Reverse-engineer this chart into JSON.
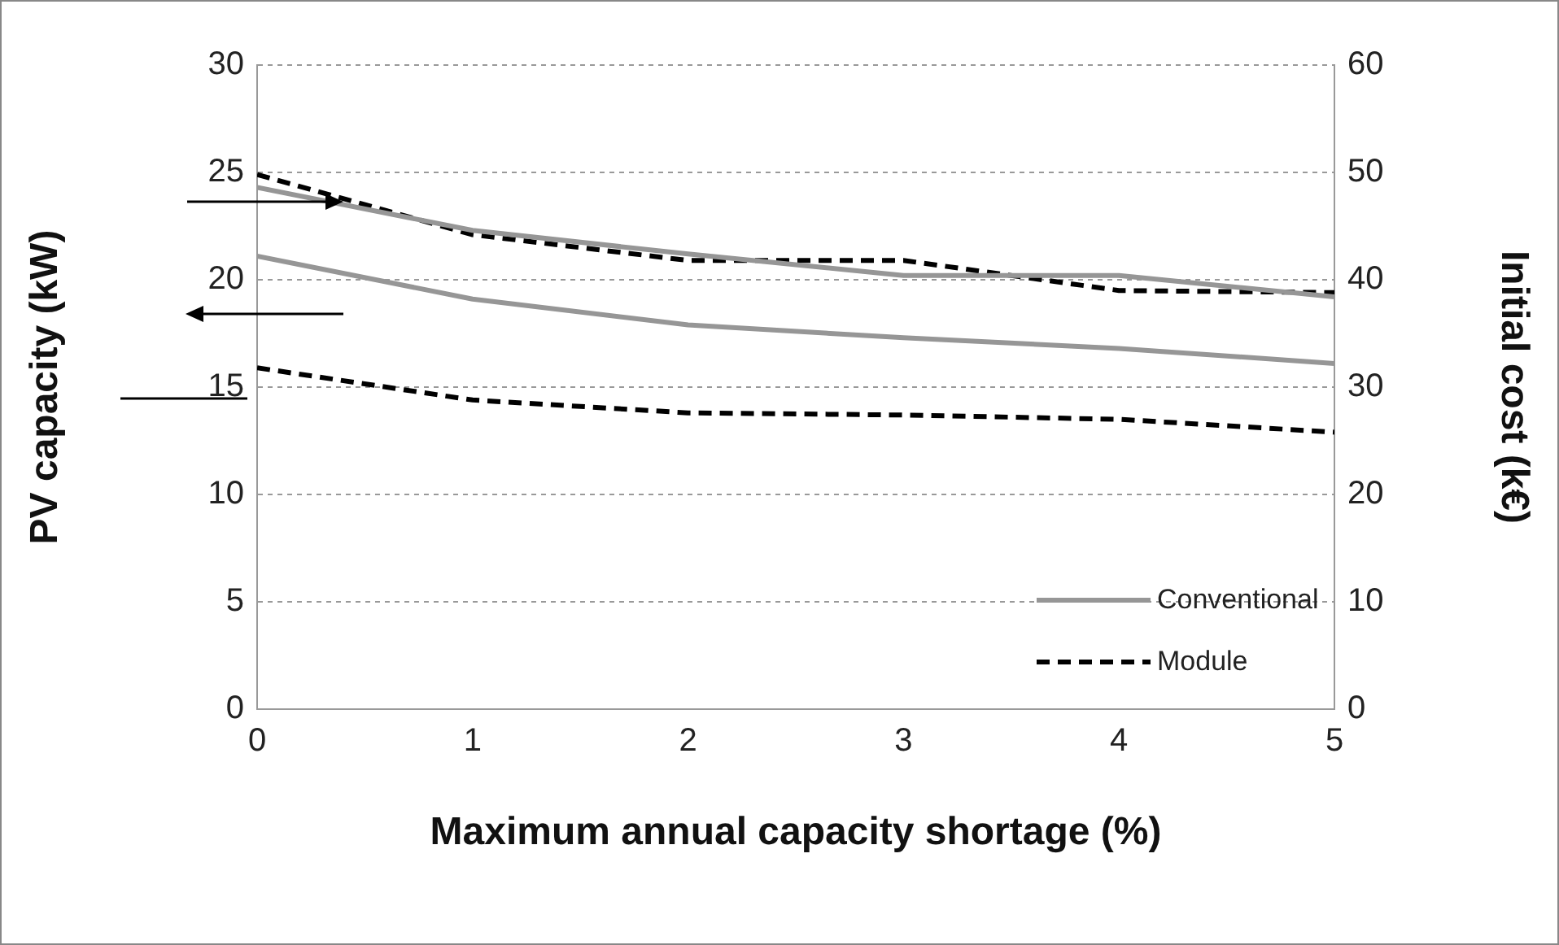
{
  "chart_data": {
    "type": "line",
    "xlabel": "Maximum annual capacity shortage (%)",
    "ylabel": "PV capacity (kW)",
    "y2label": "Initial cost (k€)",
    "x": [
      0,
      1,
      2,
      3,
      4,
      5
    ],
    "series": [
      {
        "name": "Conventional",
        "color": "#969696",
        "line_style": "solid",
        "axis": "y2",
        "values": [
          48.6,
          44.6,
          42.4,
          40.4,
          40.4,
          38.4
        ]
      },
      {
        "name": "Module",
        "color": "#000000",
        "line_style": "dashed",
        "axis": "y2",
        "values": [
          49.8,
          44.2,
          41.8,
          41.8,
          39,
          38.8
        ]
      },
      {
        "color": "#969696",
        "line_style": "solid",
        "values": [
          21.1,
          19.1,
          17.9,
          17.3,
          16.8,
          16.1
        ]
      },
      {
        "color": "#000000",
        "line_style": "dashed",
        "values": [
          15.9,
          14.4,
          13.8,
          13.7,
          13.5,
          12.9
        ]
      }
    ],
    "xlim": [
      0,
      5
    ],
    "xticks": [
      0,
      1,
      2,
      3,
      4,
      5
    ],
    "ylim": [
      0,
      30
    ],
    "yticks": [
      0,
      5,
      10,
      15,
      20,
      25,
      30
    ],
    "y2lim": [
      0,
      60
    ],
    "y2ticks": [
      0,
      10,
      20,
      30,
      40,
      50,
      60
    ],
    "grid": "y",
    "legend": "bottom right",
    "marker": "none"
  }
}
